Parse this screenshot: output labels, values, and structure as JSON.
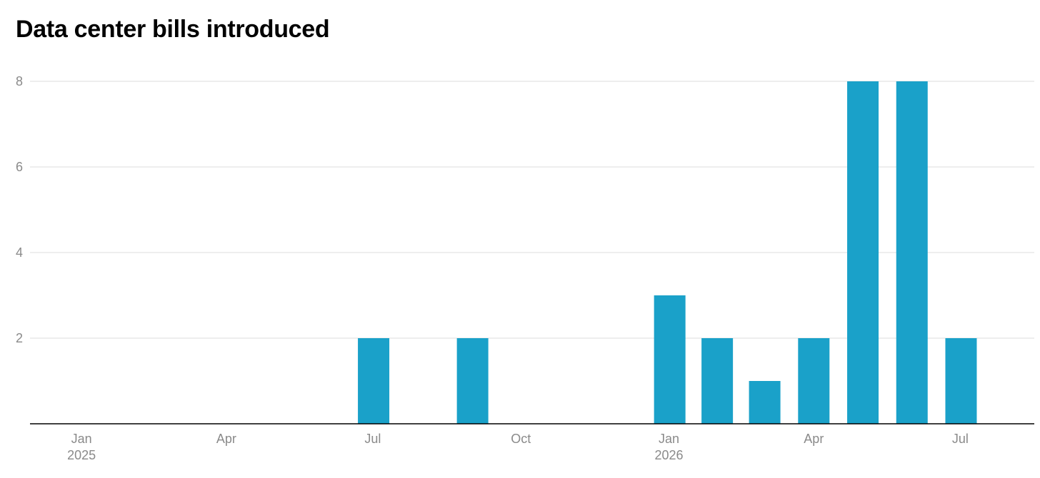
{
  "chart_data": {
    "type": "bar",
    "title": "Data center bills introduced",
    "xlabel": "",
    "ylabel": "",
    "ylim": [
      0,
      8
    ],
    "yticks": [
      2,
      4,
      6,
      8
    ],
    "xlim": [
      "2024-12-15",
      "2026-08-31"
    ],
    "x_ticks": [
      {
        "date": "2025-01-01",
        "label": "Jan",
        "year": "2025"
      },
      {
        "date": "2025-04-01",
        "label": "Apr",
        "year": ""
      },
      {
        "date": "2025-07-01",
        "label": "Jul",
        "year": ""
      },
      {
        "date": "2025-10-01",
        "label": "Oct",
        "year": ""
      },
      {
        "date": "2026-01-01",
        "label": "Jan",
        "year": "2026"
      },
      {
        "date": "2026-04-01",
        "label": "Apr",
        "year": ""
      },
      {
        "date": "2026-07-01",
        "label": "Jul",
        "year": ""
      }
    ],
    "categories": [
      "2025-07-01",
      "2025-09-01",
      "2026-01-01",
      "2026-02-01",
      "2026-03-01",
      "2026-04-01",
      "2026-05-01",
      "2026-06-01",
      "2026-07-01"
    ],
    "values": [
      2,
      2,
      3,
      2,
      1,
      2,
      8,
      8,
      2
    ],
    "grid": true,
    "bar_color": "#1aa1c9",
    "grid_color": "#e3e3e3",
    "axis_color": "#000000",
    "tick_color": "#8a8a8a"
  }
}
